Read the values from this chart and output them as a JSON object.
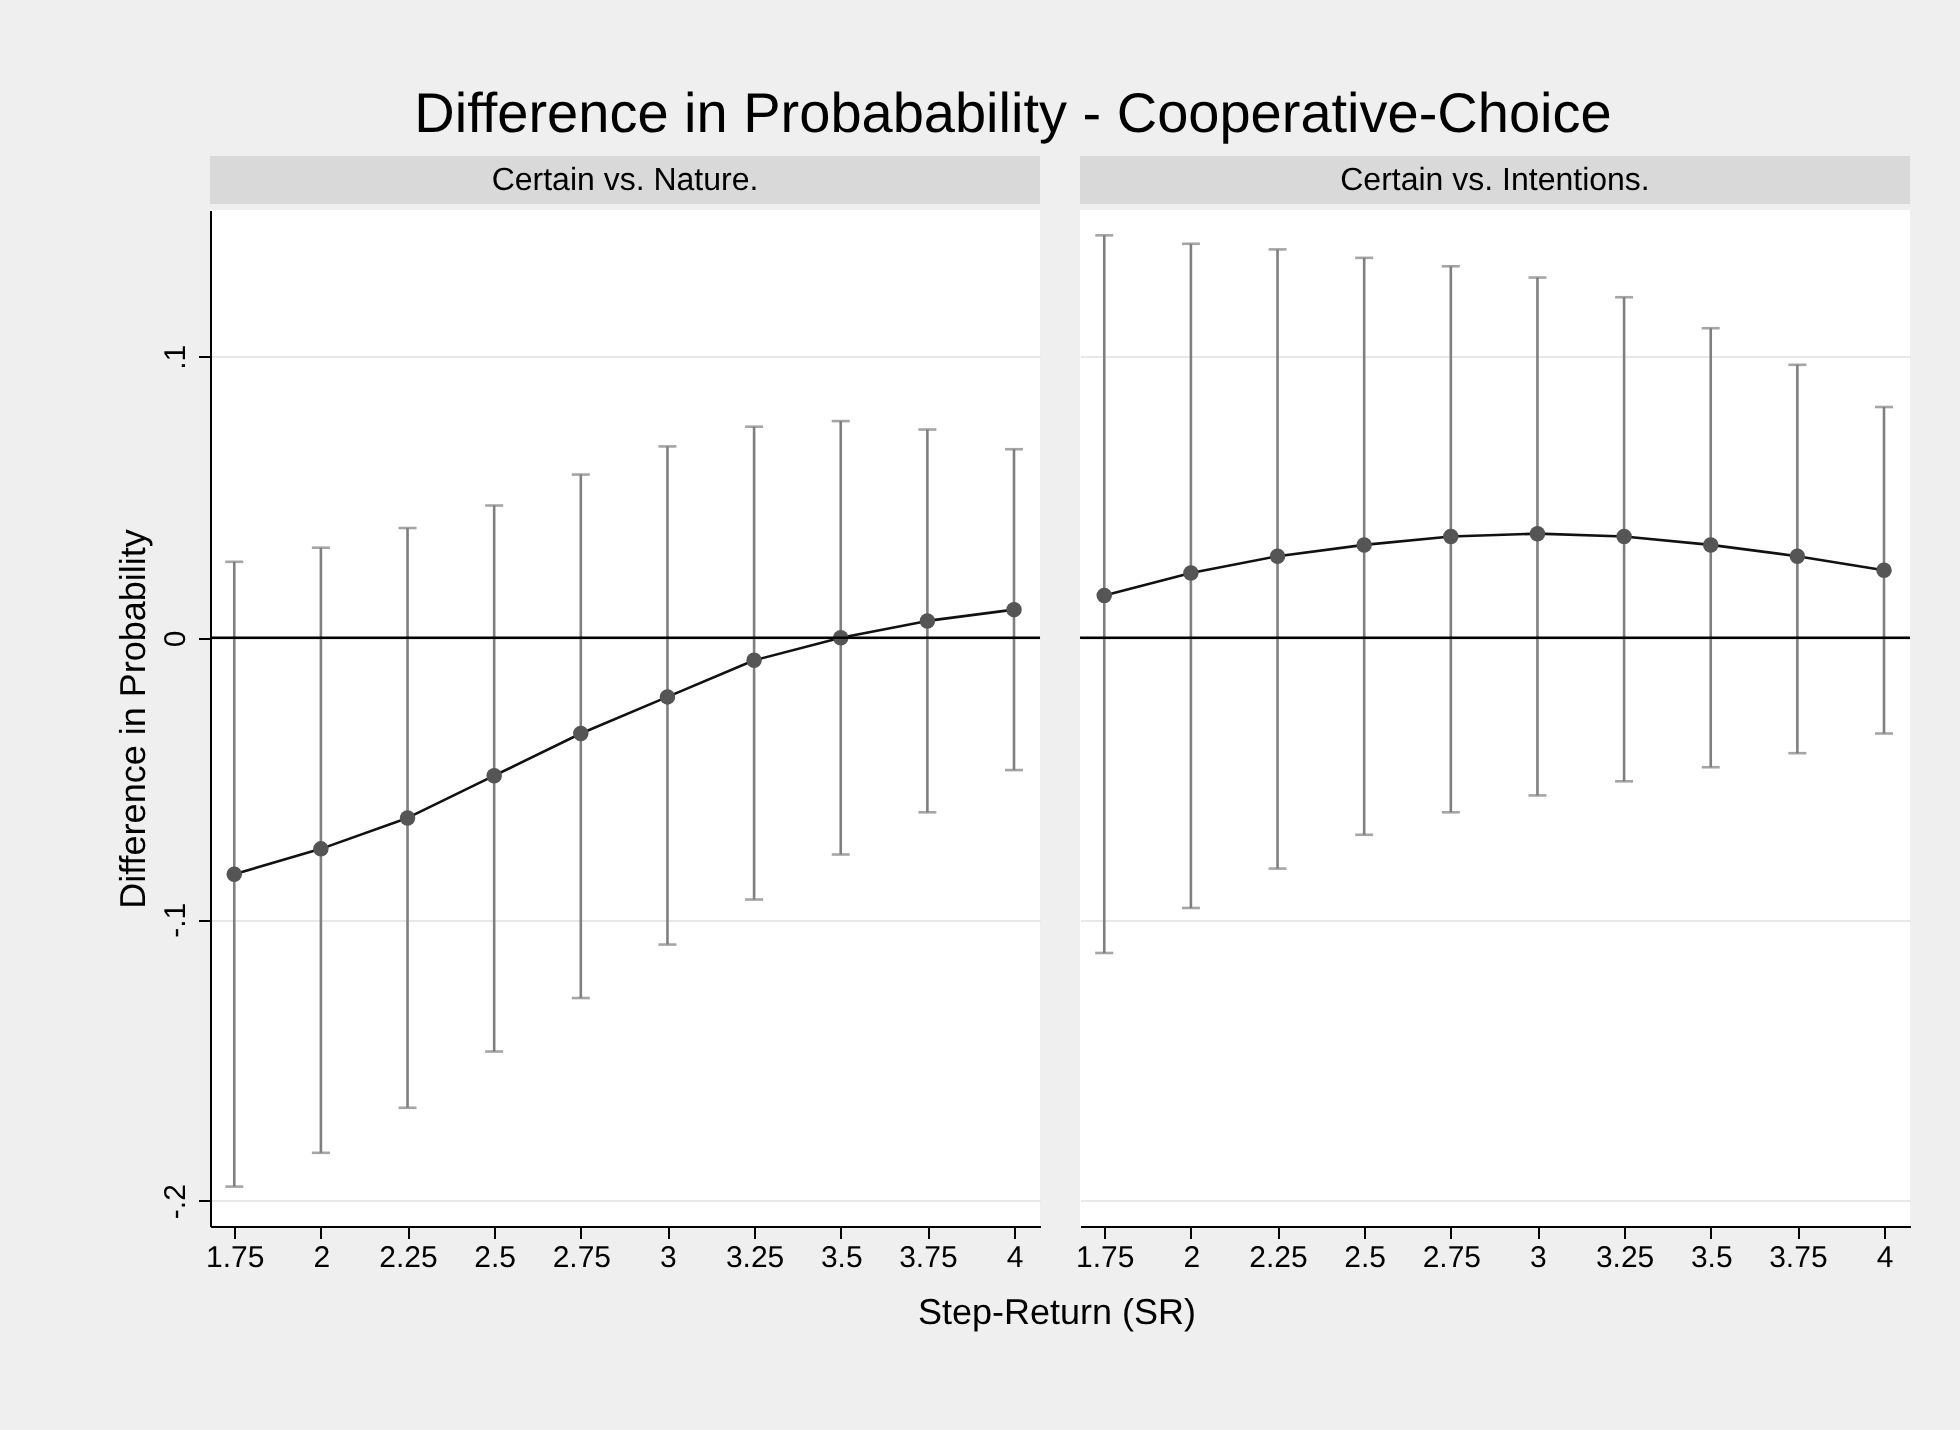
{
  "chart_data": [
    {
      "type": "line",
      "title": "Difference in Probabability - Cooperative-Choice",
      "subtitle": "Certain vs. Nature.",
      "xlabel": "Step-Return (SR)",
      "ylabel": "Difference in Probability",
      "x": [
        1.75,
        2,
        2.25,
        2.5,
        2.75,
        3,
        3.25,
        3.5,
        3.75,
        4
      ],
      "series": [
        {
          "color": "#555555",
          "values": [
            -0.084,
            -0.075,
            -0.064,
            -0.049,
            -0.034,
            -0.021,
            -0.008,
            0.0,
            0.006,
            0.01
          ],
          "errors": [
            [
              -0.195,
              0.027
            ],
            [
              -0.183,
              0.032
            ],
            [
              -0.167,
              0.039
            ],
            [
              -0.147,
              0.047
            ],
            [
              -0.128,
              0.058
            ],
            [
              -0.109,
              0.068
            ],
            [
              -0.093,
              0.075
            ],
            [
              -0.077,
              0.077
            ],
            [
              -0.062,
              0.074
            ],
            [
              -0.047,
              0.067
            ]
          ]
        }
      ],
      "xlim": [
        1.68,
        4.075
      ],
      "xticks": [
        1.75,
        2,
        2.25,
        2.5,
        2.75,
        3,
        3.25,
        3.5,
        3.75,
        4
      ],
      "ylim": [
        -0.209,
        0.152
      ],
      "yticks": [
        {
          "value": -0.2,
          "label": "-.2"
        },
        {
          "value": -0.1,
          "label": "-.1"
        },
        0,
        {
          "value": 0.1,
          "label": ".1"
        }
      ],
      "ref_lines": [
        {
          "axis": "y",
          "value": 0,
          "color": "#000000"
        }
      ],
      "grid": "y",
      "marker": "circle",
      "line_style": "solid",
      "legend": false
    },
    {
      "type": "line",
      "subtitle": "Certain vs. Intentions.",
      "x": [
        1.75,
        2,
        2.25,
        2.5,
        2.75,
        3,
        3.25,
        3.5,
        3.75,
        4
      ],
      "series": [
        {
          "color": "#555555",
          "values": [
            0.015,
            0.023,
            0.029,
            0.033,
            0.036,
            0.037,
            0.036,
            0.033,
            0.029,
            0.024
          ],
          "errors": [
            [
              -0.112,
              0.143
            ],
            [
              -0.096,
              0.14
            ],
            [
              -0.082,
              0.138
            ],
            [
              -0.07,
              0.135
            ],
            [
              -0.062,
              0.132
            ],
            [
              -0.056,
              0.128
            ],
            [
              -0.051,
              0.121
            ],
            [
              -0.046,
              0.11
            ],
            [
              -0.041,
              0.097
            ],
            [
              -0.034,
              0.082
            ]
          ]
        }
      ],
      "xlim": [
        1.68,
        4.075
      ],
      "xticks": [
        1.75,
        2,
        2.25,
        2.5,
        2.75,
        3,
        3.25,
        3.5,
        3.75,
        4
      ],
      "ylim": [
        -0.209,
        0.152
      ],
      "yticks": [
        -0.2,
        -0.1,
        0,
        0.1
      ],
      "ref_lines": [
        {
          "axis": "y",
          "value": 0,
          "color": "#000000"
        }
      ],
      "grid": "y",
      "marker": "circle",
      "line_style": "solid",
      "legend": false,
      "tick_labels": "x"
    }
  ]
}
